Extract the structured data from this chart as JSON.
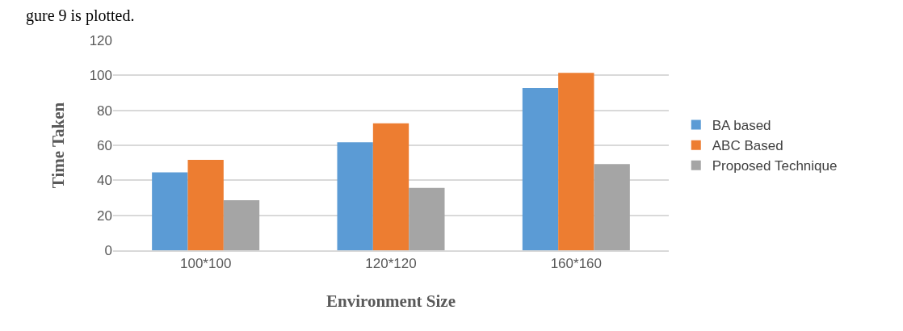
{
  "chart_data": {
    "type": "bar",
    "xlabel": "Environment Size",
    "ylabel": "Time Taken",
    "annotations": [
      "gure 9 is plotted."
    ],
    "categories": [
      "100*100",
      "120*120",
      "160*160"
    ],
    "series": [
      {
        "name": "BA based",
        "color": "#5b9bd5",
        "values": [
          44.5,
          61.7,
          92.8
        ]
      },
      {
        "name": "ABC Based",
        "color": "#ed7d31",
        "values": [
          51.7,
          72.6,
          101.4
        ]
      },
      {
        "name": "Proposed Technique",
        "color": "#a5a5a5",
        "values": [
          28.6,
          35.7,
          49.3
        ]
      }
    ],
    "ylim": [
      0,
      120
    ],
    "yticks": [
      0,
      20,
      40,
      60,
      80,
      100,
      120
    ],
    "grid": "y",
    "legend": "right"
  }
}
